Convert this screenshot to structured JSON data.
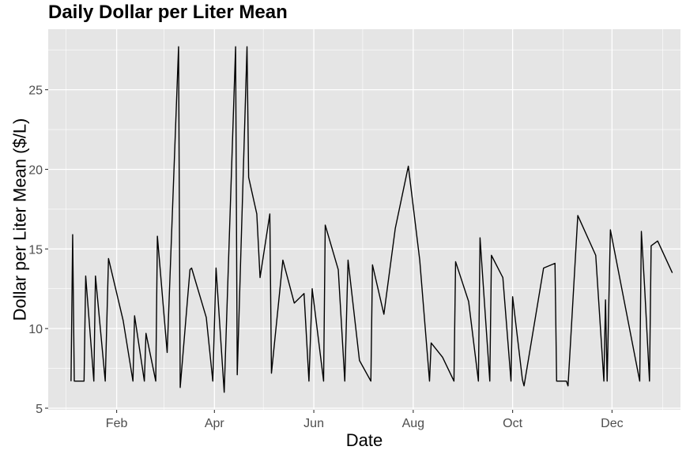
{
  "chart_data": {
    "type": "line",
    "title": "Daily Dollar per Liter Mean",
    "xlabel": "Date",
    "ylabel": "Dollar per Liter Mean ($/L)",
    "x_tick_labels": [
      "Feb",
      "Apr",
      "Jun",
      "Aug",
      "Oct",
      "Dec"
    ],
    "x_tick_dates": [
      "2012-02-01",
      "2012-04-01",
      "2012-06-01",
      "2012-08-01",
      "2012-10-01",
      "2012-12-01"
    ],
    "x_minor_dates": [
      "2012-01-01",
      "2012-03-01",
      "2012-05-01",
      "2012-07-01",
      "2012-09-01",
      "2012-11-01",
      "2013-01-01"
    ],
    "xlim": [
      "2011-12-21",
      "2013-01-12"
    ],
    "y_ticks": [
      5,
      10,
      15,
      20,
      25
    ],
    "ylim": [
      4.9,
      28.8
    ],
    "grid": true,
    "colors": {
      "panel": "#e5e5e5",
      "grid": "#ffffff",
      "line": "#000000",
      "tick_text": "#4d4d4d"
    },
    "series": [
      {
        "points": [
          [
            "2012-01-04",
            6.7
          ],
          [
            "2012-01-05",
            15.9
          ],
          [
            "2012-01-06",
            6.7
          ],
          [
            "2012-01-12",
            6.7
          ],
          [
            "2012-01-13",
            13.3
          ],
          [
            "2012-01-18",
            6.7
          ],
          [
            "2012-01-19",
            13.3
          ],
          [
            "2012-01-25",
            6.7
          ],
          [
            "2012-01-27",
            14.4
          ],
          [
            "2012-02-05",
            10.5
          ],
          [
            "2012-02-11",
            6.7
          ],
          [
            "2012-02-12",
            10.8
          ],
          [
            "2012-02-18",
            6.7
          ],
          [
            "2012-02-19",
            9.7
          ],
          [
            "2012-02-25",
            6.7
          ],
          [
            "2012-02-26",
            15.8
          ],
          [
            "2012-03-03",
            8.5
          ],
          [
            "2012-03-10",
            27.7
          ],
          [
            "2012-03-11",
            6.3
          ],
          [
            "2012-03-17",
            13.7
          ],
          [
            "2012-03-18",
            13.8
          ],
          [
            "2012-03-27",
            10.7
          ],
          [
            "2012-03-31",
            6.7
          ],
          [
            "2012-04-02",
            13.8
          ],
          [
            "2012-04-07",
            6.0
          ],
          [
            "2012-04-14",
            27.7
          ],
          [
            "2012-04-15",
            7.1
          ],
          [
            "2012-04-21",
            27.7
          ],
          [
            "2012-04-22",
            19.5
          ],
          [
            "2012-04-27",
            17.2
          ],
          [
            "2012-04-29",
            13.2
          ],
          [
            "2012-05-05",
            17.2
          ],
          [
            "2012-05-06",
            7.2
          ],
          [
            "2012-05-13",
            14.3
          ],
          [
            "2012-05-20",
            11.6
          ],
          [
            "2012-05-26",
            12.2
          ],
          [
            "2012-05-29",
            6.7
          ],
          [
            "2012-05-31",
            12.5
          ],
          [
            "2012-06-07",
            6.7
          ],
          [
            "2012-06-08",
            16.5
          ],
          [
            "2012-06-16",
            13.7
          ],
          [
            "2012-06-20",
            6.7
          ],
          [
            "2012-06-22",
            14.3
          ],
          [
            "2012-06-29",
            8.0
          ],
          [
            "2012-07-06",
            6.7
          ],
          [
            "2012-07-07",
            14.0
          ],
          [
            "2012-07-14",
            10.9
          ],
          [
            "2012-07-21",
            16.3
          ],
          [
            "2012-07-29",
            20.2
          ],
          [
            "2012-08-05",
            14.3
          ],
          [
            "2012-08-11",
            6.7
          ],
          [
            "2012-08-12",
            9.1
          ],
          [
            "2012-08-19",
            8.2
          ],
          [
            "2012-08-26",
            6.7
          ],
          [
            "2012-08-27",
            14.2
          ],
          [
            "2012-09-04",
            11.7
          ],
          [
            "2012-09-10",
            6.7
          ],
          [
            "2012-09-11",
            15.7
          ],
          [
            "2012-09-17",
            6.7
          ],
          [
            "2012-09-18",
            14.6
          ],
          [
            "2012-09-25",
            13.2
          ],
          [
            "2012-09-30",
            6.7
          ],
          [
            "2012-10-01",
            12.0
          ],
          [
            "2012-10-07",
            6.8
          ],
          [
            "2012-10-08",
            6.4
          ],
          [
            "2012-10-20",
            13.8
          ],
          [
            "2012-10-27",
            14.1
          ],
          [
            "2012-10-28",
            6.7
          ],
          [
            "2012-11-03",
            6.7
          ],
          [
            "2012-11-04",
            6.4
          ],
          [
            "2012-11-10",
            17.1
          ],
          [
            "2012-11-21",
            14.6
          ],
          [
            "2012-11-26",
            6.7
          ],
          [
            "2012-11-27",
            11.8
          ],
          [
            "2012-11-28",
            6.7
          ],
          [
            "2012-11-30",
            16.2
          ],
          [
            "2012-12-18",
            6.7
          ],
          [
            "2012-12-19",
            16.1
          ],
          [
            "2012-12-21",
            12.6
          ],
          [
            "2012-12-24",
            6.7
          ],
          [
            "2012-12-25",
            15.2
          ],
          [
            "2012-12-29",
            15.5
          ],
          [
            "2013-01-07",
            13.5
          ]
        ]
      }
    ]
  }
}
